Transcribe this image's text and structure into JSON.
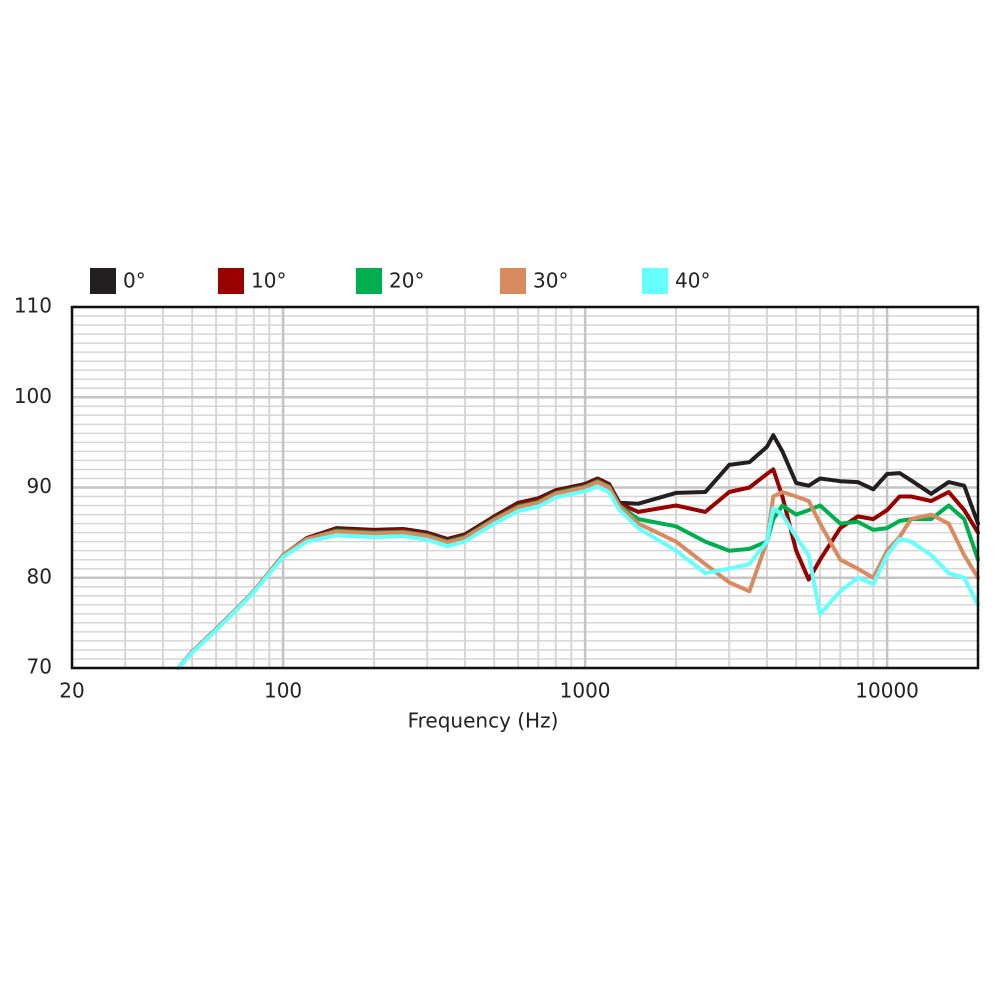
{
  "chart_data": {
    "type": "line",
    "x_label": "Frequency (Hz)",
    "xscale": "log",
    "xlim": [
      20,
      20000
    ],
    "xticks": [
      20,
      100,
      1000,
      10000
    ],
    "ylim": [
      70,
      110
    ],
    "yticks": [
      70,
      80,
      90,
      100,
      110
    ],
    "grid": true,
    "legend": "top",
    "x": [
      45,
      50,
      60,
      70,
      80,
      100,
      120,
      150,
      200,
      250,
      300,
      350,
      400,
      500,
      600,
      700,
      800,
      1000,
      1100,
      1200,
      1300,
      1500,
      2000,
      2500,
      3000,
      3500,
      4000,
      4200,
      4500,
      5000,
      5500,
      6000,
      7000,
      8000,
      9000,
      10000,
      11000,
      12000,
      14000,
      16000,
      18000,
      20000
    ],
    "series": [
      {
        "name": "0°",
        "color": "#231f20",
        "values": [
          70,
          71.8,
          74.3,
          76.5,
          78.5,
          82.5,
          84.4,
          85.5,
          85.3,
          85.4,
          85,
          84.3,
          84.8,
          86.8,
          88.3,
          88.8,
          89.7,
          90.4,
          91,
          90.4,
          88.3,
          88.2,
          89.4,
          89.5,
          92.5,
          92.8,
          94.5,
          95.8,
          94,
          90.5,
          90.2,
          91,
          90.7,
          90.6,
          89.8,
          91.5,
          91.6,
          90.8,
          89.3,
          90.6,
          90.2,
          86
        ]
      },
      {
        "name": "10°",
        "color": "#990000",
        "values": [
          70,
          71.8,
          74.3,
          76.5,
          78.5,
          82.5,
          84.4,
          85.4,
          85.2,
          85.3,
          84.9,
          84.2,
          84.7,
          86.7,
          88.2,
          88.7,
          89.6,
          90.3,
          90.9,
          90.3,
          88.2,
          87.3,
          88,
          87.3,
          89.5,
          90,
          91.5,
          92,
          89,
          83,
          79.8,
          82,
          85.5,
          86.8,
          86.5,
          87.5,
          89,
          89,
          88.5,
          89.5,
          87.5,
          85
        ]
      },
      {
        "name": "20°",
        "color": "#00b050",
        "values": [
          70,
          71.8,
          74.3,
          76.5,
          78.5,
          82.5,
          84.3,
          85.2,
          85,
          85.1,
          84.7,
          84,
          84.5,
          86.5,
          87.9,
          88.4,
          89.4,
          90.1,
          90.7,
          90.1,
          88,
          86.5,
          85.7,
          84,
          83,
          83.2,
          84,
          86.5,
          88,
          87,
          87.5,
          88,
          86,
          86.2,
          85.3,
          85.5,
          86.3,
          86.5,
          86.5,
          88,
          86.5,
          82
        ]
      },
      {
        "name": "30°",
        "color": "#d98b5f",
        "values": [
          70,
          71.8,
          74.3,
          76.5,
          78.5,
          82.5,
          84.3,
          85.1,
          84.9,
          85,
          84.6,
          83.9,
          84.4,
          86.4,
          87.8,
          88.3,
          89.3,
          90,
          90.6,
          90,
          87.9,
          86,
          84,
          81.5,
          79.5,
          78.5,
          84,
          89,
          89.5,
          89,
          88.5,
          86,
          82,
          81,
          80,
          83,
          84.5,
          86.5,
          87,
          86,
          82.5,
          80
        ]
      },
      {
        "name": "40°",
        "color": "#66ffff",
        "values": [
          70,
          71.7,
          74.2,
          76.4,
          78.4,
          82.3,
          84,
          84.7,
          84.5,
          84.6,
          84.2,
          83.5,
          84,
          86,
          87.4,
          87.9,
          88.9,
          89.6,
          90.1,
          89.5,
          87.5,
          85.5,
          83,
          80.5,
          81,
          81.5,
          84,
          87.7,
          87,
          84.5,
          82.5,
          76,
          78.5,
          80,
          79.3,
          82.5,
          84.3,
          84,
          82.5,
          80.5,
          80,
          77
        ]
      }
    ]
  }
}
